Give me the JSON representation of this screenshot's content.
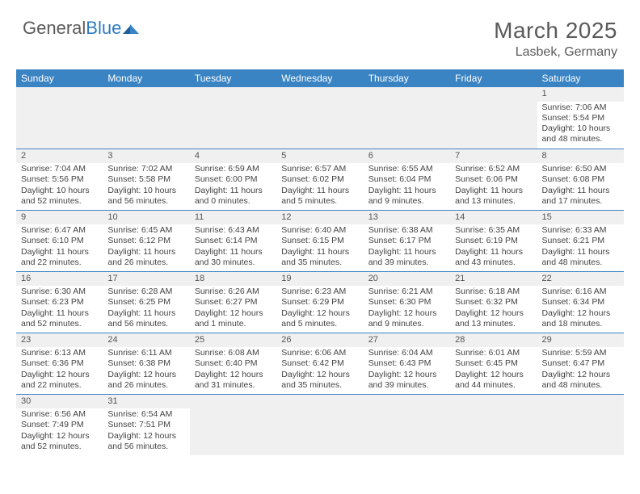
{
  "colors": {
    "header_bg": "#3b84c4",
    "header_text": "#ffffff",
    "body_text": "#444444",
    "muted_text": "#5a5a5a",
    "daynum_bg": "#f0f0f0",
    "grid_line": "#3b84c4",
    "logo_blue": "#2f7bbf",
    "page_bg": "#ffffff"
  },
  "logo": {
    "word1": "General",
    "word2": "Blue"
  },
  "title": "March 2025",
  "location": "Lasbek, Germany",
  "weekdays": [
    "Sunday",
    "Monday",
    "Tuesday",
    "Wednesday",
    "Thursday",
    "Friday",
    "Saturday"
  ],
  "weeks": [
    [
      null,
      null,
      null,
      null,
      null,
      null,
      {
        "n": "1",
        "sr": "Sunrise: 7:06 AM",
        "ss": "Sunset: 5:54 PM",
        "dl": "Daylight: 10 hours and 48 minutes."
      }
    ],
    [
      {
        "n": "2",
        "sr": "Sunrise: 7:04 AM",
        "ss": "Sunset: 5:56 PM",
        "dl": "Daylight: 10 hours and 52 minutes."
      },
      {
        "n": "3",
        "sr": "Sunrise: 7:02 AM",
        "ss": "Sunset: 5:58 PM",
        "dl": "Daylight: 10 hours and 56 minutes."
      },
      {
        "n": "4",
        "sr": "Sunrise: 6:59 AM",
        "ss": "Sunset: 6:00 PM",
        "dl": "Daylight: 11 hours and 0 minutes."
      },
      {
        "n": "5",
        "sr": "Sunrise: 6:57 AM",
        "ss": "Sunset: 6:02 PM",
        "dl": "Daylight: 11 hours and 5 minutes."
      },
      {
        "n": "6",
        "sr": "Sunrise: 6:55 AM",
        "ss": "Sunset: 6:04 PM",
        "dl": "Daylight: 11 hours and 9 minutes."
      },
      {
        "n": "7",
        "sr": "Sunrise: 6:52 AM",
        "ss": "Sunset: 6:06 PM",
        "dl": "Daylight: 11 hours and 13 minutes."
      },
      {
        "n": "8",
        "sr": "Sunrise: 6:50 AM",
        "ss": "Sunset: 6:08 PM",
        "dl": "Daylight: 11 hours and 17 minutes."
      }
    ],
    [
      {
        "n": "9",
        "sr": "Sunrise: 6:47 AM",
        "ss": "Sunset: 6:10 PM",
        "dl": "Daylight: 11 hours and 22 minutes."
      },
      {
        "n": "10",
        "sr": "Sunrise: 6:45 AM",
        "ss": "Sunset: 6:12 PM",
        "dl": "Daylight: 11 hours and 26 minutes."
      },
      {
        "n": "11",
        "sr": "Sunrise: 6:43 AM",
        "ss": "Sunset: 6:14 PM",
        "dl": "Daylight: 11 hours and 30 minutes."
      },
      {
        "n": "12",
        "sr": "Sunrise: 6:40 AM",
        "ss": "Sunset: 6:15 PM",
        "dl": "Daylight: 11 hours and 35 minutes."
      },
      {
        "n": "13",
        "sr": "Sunrise: 6:38 AM",
        "ss": "Sunset: 6:17 PM",
        "dl": "Daylight: 11 hours and 39 minutes."
      },
      {
        "n": "14",
        "sr": "Sunrise: 6:35 AM",
        "ss": "Sunset: 6:19 PM",
        "dl": "Daylight: 11 hours and 43 minutes."
      },
      {
        "n": "15",
        "sr": "Sunrise: 6:33 AM",
        "ss": "Sunset: 6:21 PM",
        "dl": "Daylight: 11 hours and 48 minutes."
      }
    ],
    [
      {
        "n": "16",
        "sr": "Sunrise: 6:30 AM",
        "ss": "Sunset: 6:23 PM",
        "dl": "Daylight: 11 hours and 52 minutes."
      },
      {
        "n": "17",
        "sr": "Sunrise: 6:28 AM",
        "ss": "Sunset: 6:25 PM",
        "dl": "Daylight: 11 hours and 56 minutes."
      },
      {
        "n": "18",
        "sr": "Sunrise: 6:26 AM",
        "ss": "Sunset: 6:27 PM",
        "dl": "Daylight: 12 hours and 1 minute."
      },
      {
        "n": "19",
        "sr": "Sunrise: 6:23 AM",
        "ss": "Sunset: 6:29 PM",
        "dl": "Daylight: 12 hours and 5 minutes."
      },
      {
        "n": "20",
        "sr": "Sunrise: 6:21 AM",
        "ss": "Sunset: 6:30 PM",
        "dl": "Daylight: 12 hours and 9 minutes."
      },
      {
        "n": "21",
        "sr": "Sunrise: 6:18 AM",
        "ss": "Sunset: 6:32 PM",
        "dl": "Daylight: 12 hours and 13 minutes."
      },
      {
        "n": "22",
        "sr": "Sunrise: 6:16 AM",
        "ss": "Sunset: 6:34 PM",
        "dl": "Daylight: 12 hours and 18 minutes."
      }
    ],
    [
      {
        "n": "23",
        "sr": "Sunrise: 6:13 AM",
        "ss": "Sunset: 6:36 PM",
        "dl": "Daylight: 12 hours and 22 minutes."
      },
      {
        "n": "24",
        "sr": "Sunrise: 6:11 AM",
        "ss": "Sunset: 6:38 PM",
        "dl": "Daylight: 12 hours and 26 minutes."
      },
      {
        "n": "25",
        "sr": "Sunrise: 6:08 AM",
        "ss": "Sunset: 6:40 PM",
        "dl": "Daylight: 12 hours and 31 minutes."
      },
      {
        "n": "26",
        "sr": "Sunrise: 6:06 AM",
        "ss": "Sunset: 6:42 PM",
        "dl": "Daylight: 12 hours and 35 minutes."
      },
      {
        "n": "27",
        "sr": "Sunrise: 6:04 AM",
        "ss": "Sunset: 6:43 PM",
        "dl": "Daylight: 12 hours and 39 minutes."
      },
      {
        "n": "28",
        "sr": "Sunrise: 6:01 AM",
        "ss": "Sunset: 6:45 PM",
        "dl": "Daylight: 12 hours and 44 minutes."
      },
      {
        "n": "29",
        "sr": "Sunrise: 5:59 AM",
        "ss": "Sunset: 6:47 PM",
        "dl": "Daylight: 12 hours and 48 minutes."
      }
    ],
    [
      {
        "n": "30",
        "sr": "Sunrise: 6:56 AM",
        "ss": "Sunset: 7:49 PM",
        "dl": "Daylight: 12 hours and 52 minutes."
      },
      {
        "n": "31",
        "sr": "Sunrise: 6:54 AM",
        "ss": "Sunset: 7:51 PM",
        "dl": "Daylight: 12 hours and 56 minutes."
      },
      null,
      null,
      null,
      null,
      null
    ]
  ]
}
